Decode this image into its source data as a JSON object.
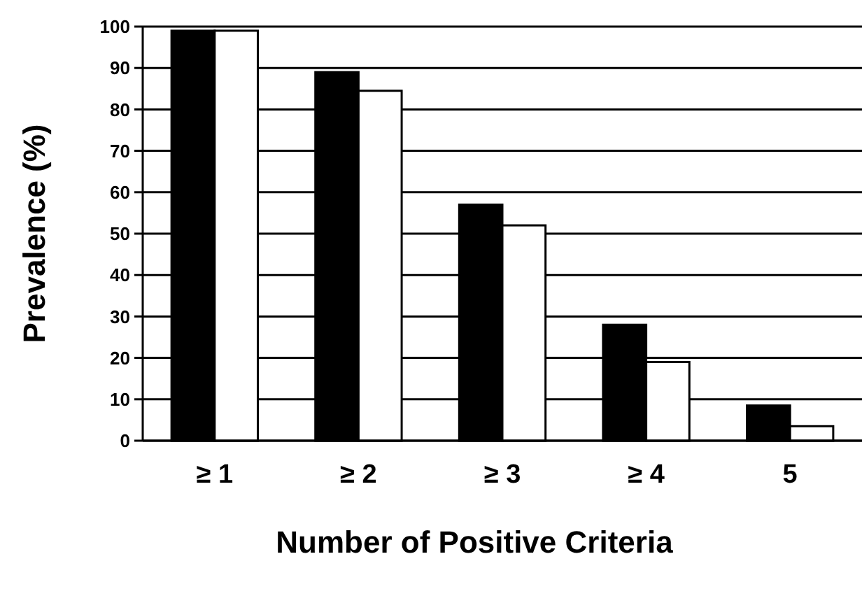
{
  "chart_data": {
    "type": "bar",
    "xlabel": "Number of Positive Criteria",
    "ylabel": "Prevalence (%)",
    "categories": [
      "≥ 1",
      "≥ 2",
      "≥ 3",
      "≥ 4",
      "5"
    ],
    "series": [
      {
        "color": "#000000",
        "values": [
          99,
          89,
          57,
          28,
          8.5
        ]
      },
      {
        "color": "#ffffff",
        "values": [
          99,
          84.5,
          52,
          19,
          3.5
        ]
      }
    ],
    "ylim": [
      0,
      100
    ],
    "yticks": [
      0,
      10,
      20,
      30,
      40,
      50,
      60,
      70,
      80,
      90,
      100
    ],
    "grid": "y"
  }
}
